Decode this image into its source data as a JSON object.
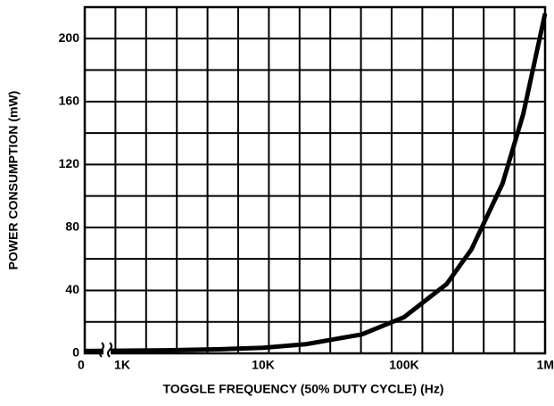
{
  "chart_data": {
    "type": "line",
    "x_label": "TOGGLE FREQUENCY (50% DUTY CYCLE) (Hz)",
    "y_label": "POWER CONSUMPTION (mW)",
    "x": [
      0,
      1000,
      2000,
      5000,
      10000,
      20000,
      50000,
      100000,
      200000,
      300000,
      500000,
      700000,
      1000000
    ],
    "series": [
      {
        "name": "Power",
        "color": "#000000",
        "values": [
          1.5,
          1.7,
          1.9,
          2.6,
          3.6,
          5.8,
          12,
          23,
          44,
          66,
          108,
          152,
          216
        ]
      }
    ],
    "xscale": "log",
    "x_break": true,
    "xlim": [
      1000,
      1000000
    ],
    "xticks": [
      {
        "value": 0,
        "label": "0"
      },
      {
        "value": 1000,
        "label": "1K"
      },
      {
        "value": 10000,
        "label": "10K"
      },
      {
        "value": 100000,
        "label": "100K"
      },
      {
        "value": 1000000,
        "label": "1M"
      }
    ],
    "ylim": [
      0,
      220
    ],
    "yticks": [
      0,
      40,
      80,
      120,
      160,
      200
    ],
    "ygrid": [
      0,
      20,
      40,
      60,
      80,
      100,
      120,
      140,
      160,
      180,
      200,
      220
    ],
    "grid": true
  }
}
